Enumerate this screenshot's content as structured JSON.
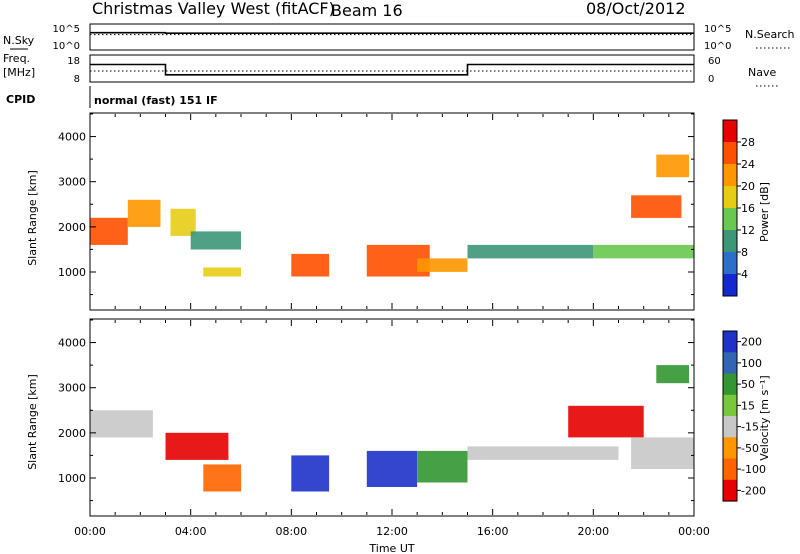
{
  "header": {
    "station": "Christmas Valley West (fitACF)",
    "beam": "Beam 16",
    "date": "08/Oct/2012"
  },
  "cpid_label": "CPID",
  "cpid_text": "normal (fast) 151 IF",
  "chart_data": [
    {
      "type": "line",
      "name": "noise",
      "left_label": "N.Sky",
      "right_label": "N.Search",
      "left_ticks": [
        "10^5",
        "10^0"
      ],
      "right_ticks": [
        "10^5",
        "10^0"
      ],
      "x": [
        0,
        3,
        15,
        24
      ],
      "series": [
        {
          "values": [
            3.4,
            3.3,
            3.3,
            3.3
          ]
        },
        {
          "values": [
            3.0,
            3.0,
            3.0,
            3.0
          ]
        }
      ]
    },
    {
      "type": "line",
      "name": "frequency",
      "left_label_lines": [
        "Freq.",
        "[MHz]"
      ],
      "right_label": "Nave",
      "left_ticks": [
        18,
        8
      ],
      "right_ticks": [
        60,
        0
      ],
      "x": [
        0,
        3,
        15,
        24
      ],
      "series": [
        {
          "values": [
            14.6,
            10.5,
            14.6,
            14.6
          ]
        },
        {
          "values": [
            12.0,
            12.0,
            12.0,
            12.0
          ]
        }
      ]
    },
    {
      "type": "heatmap",
      "name": "power",
      "xlim": [
        0,
        24
      ],
      "ylim": [
        180,
        4500
      ],
      "ylabel": "Slant Range [km]",
      "yticks": [
        1000,
        2000,
        3000,
        4000
      ],
      "colorbar_label": "Power [dB]",
      "colorbar_ticks": [
        4,
        8,
        12,
        16,
        20,
        24,
        28
      ],
      "colorbar_range": [
        0,
        32
      ],
      "colors": [
        "#1428d2",
        "#2d6ec8",
        "#3c9678",
        "#69c850",
        "#e6cd14",
        "#ff9600",
        "#ff5000",
        "#e60000"
      ],
      "regions": [
        {
          "t": [
            0,
            1.5
          ],
          "r": [
            1600,
            2200
          ],
          "v": 27
        },
        {
          "t": [
            1.5,
            2.8
          ],
          "r": [
            2000,
            2600
          ],
          "v": 20
        },
        {
          "t": [
            3.2,
            4.2
          ],
          "r": [
            1800,
            2400
          ],
          "v": 18
        },
        {
          "t": [
            4.0,
            6.0
          ],
          "r": [
            1500,
            1900
          ],
          "v": 10
        },
        {
          "t": [
            4.5,
            6.0
          ],
          "r": [
            900,
            1100
          ],
          "v": 18
        },
        {
          "t": [
            8.0,
            9.5
          ],
          "r": [
            900,
            1400
          ],
          "v": 26
        },
        {
          "t": [
            11.0,
            13.5
          ],
          "r": [
            900,
            1600
          ],
          "v": 27
        },
        {
          "t": [
            13.0,
            15.0
          ],
          "r": [
            1000,
            1300
          ],
          "v": 20
        },
        {
          "t": [
            15.0,
            20.0
          ],
          "r": [
            1300,
            1600
          ],
          "v": 10
        },
        {
          "t": [
            20.0,
            24.0
          ],
          "r": [
            1300,
            1600
          ],
          "v": 12
        },
        {
          "t": [
            21.5,
            23.5
          ],
          "r": [
            2200,
            2700
          ],
          "v": 24
        },
        {
          "t": [
            22.5,
            23.8
          ],
          "r": [
            3100,
            3600
          ],
          "v": 20
        }
      ]
    },
    {
      "type": "heatmap",
      "name": "velocity",
      "xlim": [
        0,
        24
      ],
      "ylim": [
        180,
        4500
      ],
      "xlabel": "Time UT",
      "xticks": [
        "00:00",
        "04:00",
        "08:00",
        "12:00",
        "16:00",
        "20:00",
        "00:00"
      ],
      "ylabel": "Slant Range [km]",
      "yticks": [
        1000,
        2000,
        3000,
        4000
      ],
      "colorbar_label": "Velocity [m s⁻¹]",
      "colorbar_ticks": [
        "200",
        "100",
        "50",
        "15",
        "-15",
        "-50",
        "-100",
        "-200"
      ],
      "colors": [
        "#1e32c8",
        "#3264b4",
        "#329632",
        "#78c83c",
        "#c8c8c8",
        "#ff9600",
        "#ff6400",
        "#e60000"
      ],
      "regions": [
        {
          "t": [
            0,
            2.5
          ],
          "r": [
            1900,
            2500
          ],
          "v": 0
        },
        {
          "t": [
            3.0,
            5.5
          ],
          "r": [
            1400,
            2000
          ],
          "v": -220
        },
        {
          "t": [
            4.5,
            6.0
          ],
          "r": [
            700,
            1300
          ],
          "v": -80
        },
        {
          "t": [
            8.0,
            9.5
          ],
          "r": [
            700,
            1500
          ],
          "v": 220
        },
        {
          "t": [
            11.0,
            13.0
          ],
          "r": [
            800,
            1600
          ],
          "v": 220
        },
        {
          "t": [
            13.0,
            15.0
          ],
          "r": [
            900,
            1600
          ],
          "v": 40
        },
        {
          "t": [
            15.0,
            21.0
          ],
          "r": [
            1400,
            1700
          ],
          "v": 0
        },
        {
          "t": [
            19.0,
            22.0
          ],
          "r": [
            1900,
            2600
          ],
          "v": -220
        },
        {
          "t": [
            21.5,
            24.0
          ],
          "r": [
            1200,
            1900
          ],
          "v": 0
        },
        {
          "t": [
            22.5,
            23.8
          ],
          "r": [
            3100,
            3500
          ],
          "v": 40
        }
      ]
    }
  ]
}
